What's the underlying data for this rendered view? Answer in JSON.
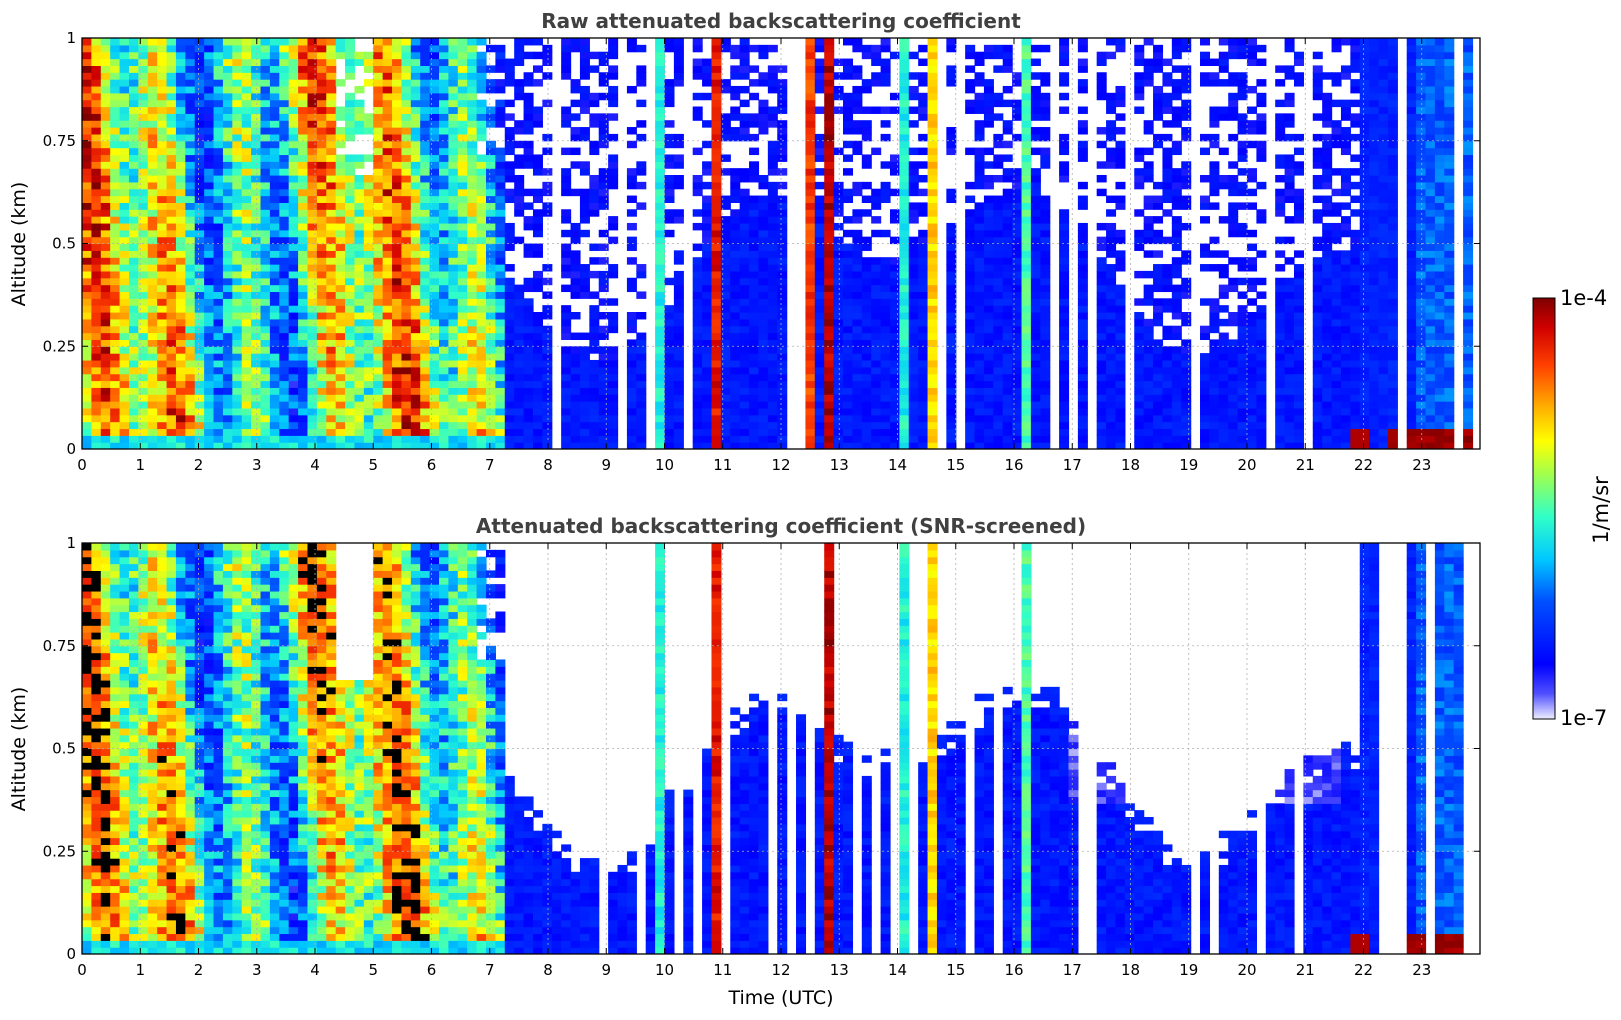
{
  "chart_data": [
    {
      "type": "heatmap",
      "title": "Raw attenuated backscattering coefficient",
      "xlabel": "",
      "ylabel": "Altitude (km)",
      "xlim": [
        0,
        24
      ],
      "ylim": [
        0,
        1
      ],
      "xticks": [
        "0",
        "1",
        "2",
        "3",
        "4",
        "5",
        "6",
        "7",
        "8",
        "9",
        "10",
        "11",
        "12",
        "13",
        "14",
        "15",
        "16",
        "17",
        "18",
        "19",
        "20",
        "21",
        "22",
        "23"
      ],
      "yticks": [
        "0",
        "0.25",
        "0.5",
        "0.75",
        "1"
      ],
      "grid": true,
      "colormap": "jet (log scale, 1e-7 to 1e-4)",
      "noise_threshold_hour": 7.1,
      "near_surface_high_backscatter_hours": [
        21.6,
        23.9
      ]
    },
    {
      "type": "heatmap",
      "title": "Attenuated backscattering coefficient (SNR-screened)",
      "xlabel": "Time (UTC)",
      "ylabel": "Altitude (km)",
      "xlim": [
        0,
        24
      ],
      "ylim": [
        0,
        1
      ],
      "xticks": [
        "0",
        "1",
        "2",
        "3",
        "4",
        "5",
        "6",
        "7",
        "8",
        "9",
        "10",
        "11",
        "12",
        "13",
        "14",
        "15",
        "16",
        "17",
        "18",
        "19",
        "20",
        "21",
        "22",
        "23"
      ],
      "yticks": [
        "0",
        "0.25",
        "0.5",
        "0.75",
        "1"
      ],
      "grid": true,
      "colormap": "jet (log scale, 1e-7 to 1e-4)",
      "screened_out_color": "#ffffff"
    }
  ],
  "colorbar": {
    "label": "1/m/sr",
    "max_label": "1e-4",
    "min_label": "1e-7",
    "scale": "log",
    "colors": [
      "#eeeeff",
      "#0000ff",
      "#00c8ff",
      "#ffff00",
      "#ff5000",
      "#800000"
    ]
  }
}
